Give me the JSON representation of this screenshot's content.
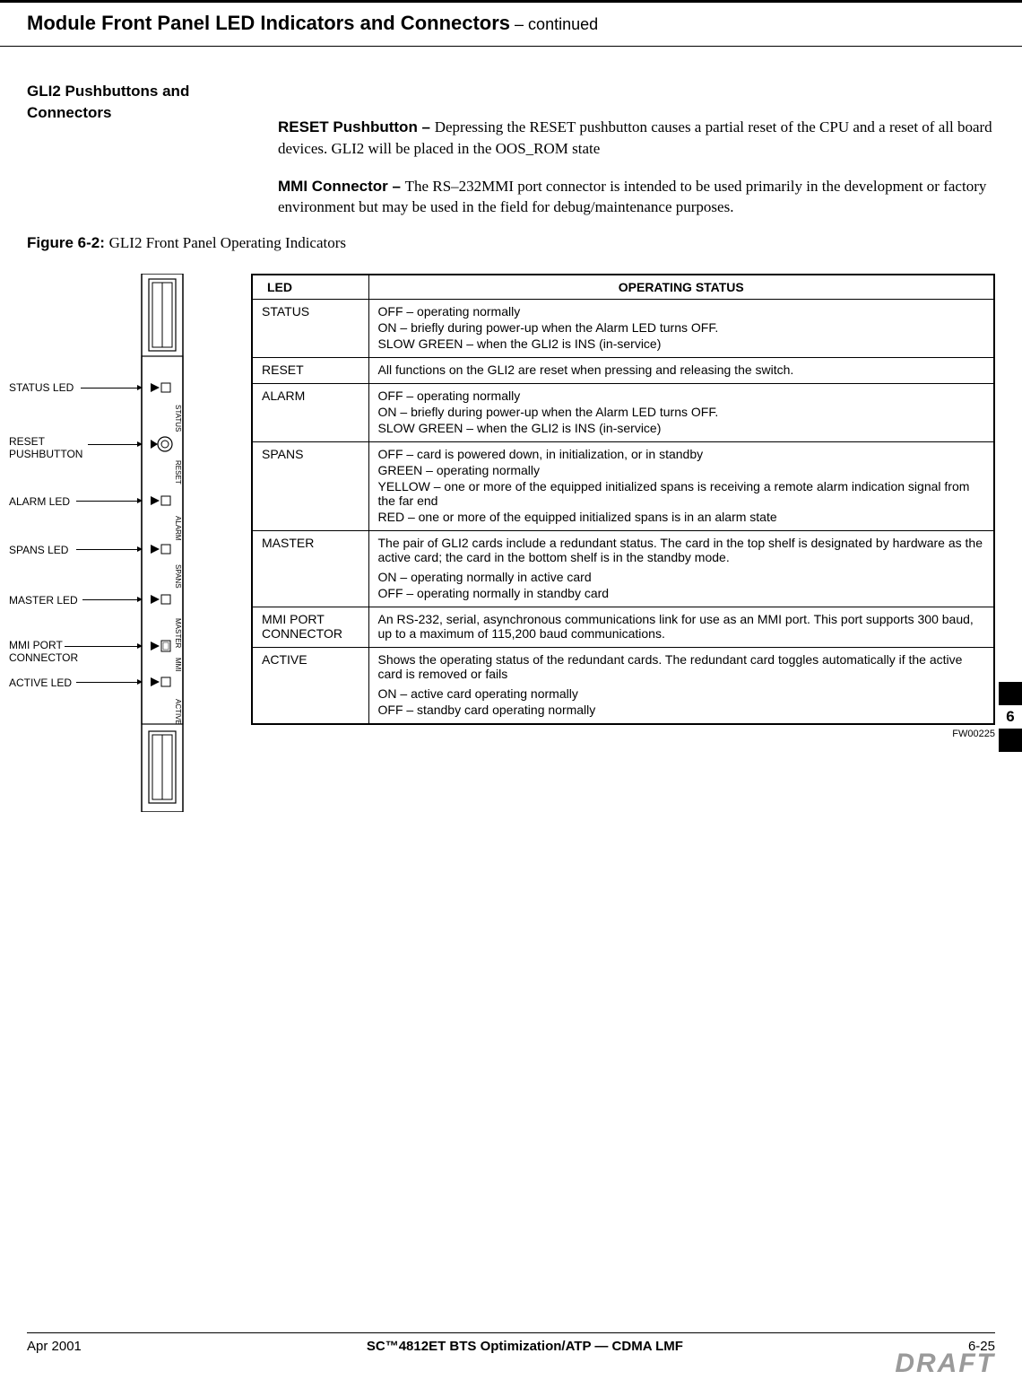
{
  "header": {
    "title": "Module Front Panel LED Indicators and Connectors",
    "continued": " – continued"
  },
  "section": {
    "label1": "GLI2 Pushbuttons and",
    "label2": "Connectors"
  },
  "paragraphs": {
    "reset": {
      "lead": "RESET Pushbutton – ",
      "body": "Depressing the RESET pushbutton causes a partial reset of the CPU and a reset of all board devices. GLI2 will be placed in the OOS_ROM state"
    },
    "mmi": {
      "lead": "MMI Connector – ",
      "body": "The RS–232MMI port connector is intended to be used primarily in the development or factory environment but may be used in the field for debug/maintenance purposes."
    }
  },
  "figure": {
    "label": "Figure 6-2: ",
    "caption": "GLI2 Front Panel Operating Indicators"
  },
  "panel_labels": {
    "status": "STATUS",
    "reset": "RESET",
    "alarm": "ALARM",
    "spans": "SPANS",
    "master": "MASTER",
    "mmi": "MMI",
    "active": "ACTIVE"
  },
  "diagram_labels": {
    "status_led": "STATUS LED",
    "reset_push1": "RESET",
    "reset_push2": "PUSHBUTTON",
    "alarm_led": "ALARM LED",
    "spans_led": "SPANS LED",
    "master_led": "MASTER LED",
    "mmi_conn1": "MMI PORT",
    "mmi_conn2": "CONNECTOR",
    "active_led": "ACTIVE LED"
  },
  "table": {
    "headers": {
      "led": "LED",
      "status": "OPERATING STATUS"
    },
    "rows": [
      {
        "led": "STATUS",
        "lines": [
          "OFF – operating normally",
          "ON – briefly during power-up when the Alarm LED turns OFF.",
          "SLOW GREEN – when the GLI2 is INS (in-service)"
        ]
      },
      {
        "led": "RESET",
        "lines": [
          "All functions on the GLI2 are reset when pressing and releasing the switch."
        ]
      },
      {
        "led": "ALARM",
        "lines": [
          "OFF – operating normally",
          "ON – briefly during power-up when the Alarm LED turns OFF.",
          "SLOW GREEN – when the GLI2 is INS (in-service)"
        ]
      },
      {
        "led": "SPANS",
        "lines": [
          "OFF – card is powered down, in initialization, or in standby",
          "GREEN – operating normally",
          "YELLOW – one or more of the equipped initialized spans is receiving a remote alarm indication signal from the far end",
          "RED – one or more of the equipped initialized spans is in an alarm state"
        ]
      },
      {
        "led": "MASTER",
        "lines": [
          "The pair of GLI2 cards include a redundant status. The card in the top shelf is designated by hardware as the active card; the card in the bottom shelf is in the standby mode."
        ],
        "lines2": [
          "ON – operating normally in active card",
          "OFF – operating normally in standby card"
        ]
      },
      {
        "led": "MMI PORT CONNECTOR",
        "lines": [
          "An RS-232, serial, asynchronous communications link for use as an MMI port. This port supports 300 baud, up to a maximum of 115,200 baud communications."
        ]
      },
      {
        "led": "ACTIVE",
        "lines": [
          "Shows the operating status of the redundant cards. The redundant card toggles automatically if the active card is removed or fails"
        ],
        "lines2": [
          "ON – active card operating normally",
          "OFF – standby card operating normally"
        ]
      }
    ]
  },
  "fw_ref": "FW00225",
  "chapter_tab": "6",
  "footer": {
    "date": "Apr 2001",
    "center": "SC™4812ET BTS Optimization/ATP — CDMA LMF",
    "page": "6-25",
    "draft": "DRAFT"
  }
}
